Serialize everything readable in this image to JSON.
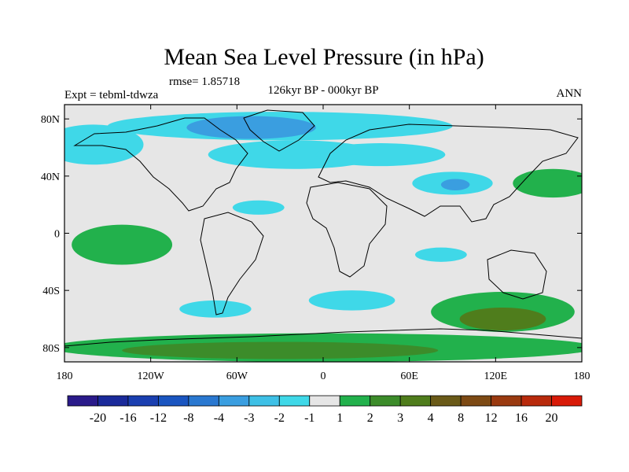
{
  "chart_data": {
    "type": "heatmap",
    "title": "Mean Sea Level Pressure (in hPa)",
    "rmse_label": "rmse= 1.85718",
    "experiment": "Expt = tebml-tdwza",
    "subtitle": "126kyr BP - 000kyr BP",
    "season": "ANN",
    "xlim": [
      -180,
      180
    ],
    "ylim": [
      -90,
      90
    ],
    "x_ticks": [
      {
        "value": -180,
        "label": "180"
      },
      {
        "value": -120,
        "label": "120W"
      },
      {
        "value": -60,
        "label": "60W"
      },
      {
        "value": 0,
        "label": "0"
      },
      {
        "value": 60,
        "label": "60E"
      },
      {
        "value": 120,
        "label": "120E"
      },
      {
        "value": 180,
        "label": "180"
      }
    ],
    "y_ticks": [
      {
        "value": 80,
        "label": "80N"
      },
      {
        "value": 40,
        "label": "40N"
      },
      {
        "value": 0,
        "label": "0"
      },
      {
        "value": -40,
        "label": "40S"
      },
      {
        "value": -80,
        "label": "80S"
      }
    ],
    "colorbar": {
      "colors": [
        "#2a1a8a",
        "#1a2a9a",
        "#1a3fb0",
        "#1a55c0",
        "#2a78d0",
        "#3a9ee0",
        "#3ec0e6",
        "#3fd8e8",
        "#e6e6e6",
        "#22b14c",
        "#3c8c2a",
        "#4f7d1c",
        "#6a5a18",
        "#7d4a14",
        "#9a3a10",
        "#b82a0c",
        "#d81a08"
      ],
      "labels": [
        "-20",
        "-16",
        "-12",
        "-8",
        "-4",
        "-3",
        "-2",
        "-1",
        "1",
        "2",
        "3",
        "4",
        "8",
        "12",
        "16",
        "20"
      ]
    },
    "regions": [
      {
        "name": "arctic-negative",
        "level": 7,
        "center": [
          -30,
          75
        ],
        "radius": [
          120,
          10
        ]
      },
      {
        "name": "greenland-low",
        "level": 5,
        "center": [
          -50,
          74
        ],
        "radius": [
          45,
          8
        ]
      },
      {
        "name": "north-pacific-negative",
        "level": 7,
        "center": [
          -160,
          62
        ],
        "radius": [
          35,
          14
        ]
      },
      {
        "name": "north-atlantic-negative",
        "level": 7,
        "center": [
          -20,
          55
        ],
        "radius": [
          60,
          10
        ]
      },
      {
        "name": "europe-negative",
        "level": 7,
        "center": [
          40,
          55
        ],
        "radius": [
          45,
          8
        ]
      },
      {
        "name": "tibet-low",
        "level": 7,
        "center": [
          90,
          35
        ],
        "radius": [
          28,
          8
        ]
      },
      {
        "name": "tibet-core",
        "level": 5,
        "center": [
          92,
          34
        ],
        "radius": [
          10,
          4
        ]
      },
      {
        "name": "north-pacific-positive",
        "level": 9,
        "center": [
          160,
          35
        ],
        "radius": [
          28,
          10
        ]
      },
      {
        "name": "central-pacific-positive",
        "level": 9,
        "center": [
          -140,
          -8
        ],
        "radius": [
          35,
          14
        ]
      },
      {
        "name": "tropical-atlantic-negative",
        "level": 7,
        "center": [
          -45,
          18
        ],
        "radius": [
          18,
          5
        ]
      },
      {
        "name": "indian-ocean-negative",
        "level": 7,
        "center": [
          82,
          -15
        ],
        "radius": [
          18,
          5
        ]
      },
      {
        "name": "south-atlantic-negative",
        "level": 7,
        "center": [
          20,
          -47
        ],
        "radius": [
          30,
          7
        ]
      },
      {
        "name": "south-america-negative",
        "level": 7,
        "center": [
          -75,
          -53
        ],
        "radius": [
          25,
          6
        ]
      },
      {
        "name": "australia-south-positive",
        "level": 9,
        "center": [
          125,
          -55
        ],
        "radius": [
          50,
          14
        ]
      },
      {
        "name": "australia-south-core",
        "level": 11,
        "center": [
          125,
          -60
        ],
        "radius": [
          30,
          8
        ]
      },
      {
        "name": "antarctic-positive",
        "level": 9,
        "center": [
          0,
          -80
        ],
        "radius": [
          190,
          10
        ]
      },
      {
        "name": "antarctic-core",
        "level": 10,
        "center": [
          -30,
          -82
        ],
        "radius": [
          110,
          6
        ]
      }
    ]
  }
}
